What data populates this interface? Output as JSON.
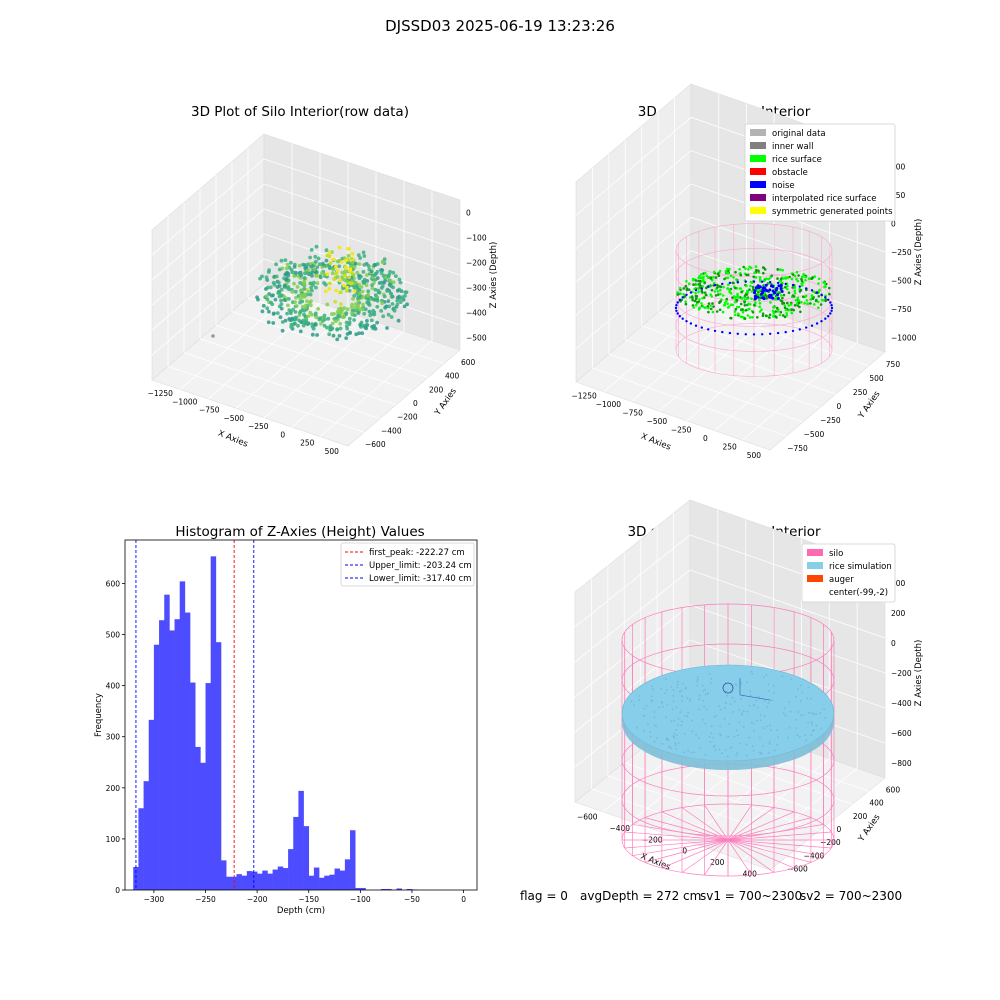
{
  "suptitle": "DJSSD03 2025-06-19 13:23:26",
  "status": {
    "flag": "flag = 0",
    "avg": "avgDepth = 272 cm",
    "sv1": "sv1 = 700~2300",
    "sv2": "sv2 = 700~2300"
  },
  "chart_data": [
    {
      "type": "scatter",
      "title": "3D Plot of Silo Interior(row data)",
      "xlabel": "X Axies",
      "ylabel": "Y Axies",
      "zlabel": "Z Axies (Depth)",
      "x_ticks": [
        "−1250",
        "−1000",
        "−750",
        "−500",
        "−250",
        "0",
        "250",
        "500"
      ],
      "y_ticks": [
        "−600",
        "−400",
        "−200",
        "0",
        "200",
        "400",
        "600"
      ],
      "z_ticks": [
        "−500",
        "−400",
        "−300",
        "−200",
        "−100",
        "0"
      ],
      "colormap": [
        "#2f9a8a",
        "#3bb07f",
        "#7fcf4d",
        "#c8e020",
        "#f4e61e"
      ]
    },
    {
      "type": "scatter",
      "title": "3D classify of Silo Interior",
      "xlabel": "X Axies",
      "ylabel": "Y Axies",
      "zlabel": "Z Axies (Depth)",
      "x_ticks": [
        "−1250",
        "−1000",
        "−750",
        "−500",
        "−250",
        "0",
        "250",
        "500"
      ],
      "y_ticks": [
        "−750",
        "−500",
        "−250",
        "0",
        "250",
        "500",
        "750"
      ],
      "z_ticks": [
        "−1000",
        "−750",
        "−500",
        "−250",
        "0",
        "250",
        "500"
      ],
      "legend": [
        {
          "label": "original data",
          "color": "#b3b3b3"
        },
        {
          "label": "inner wall",
          "color": "#808080"
        },
        {
          "label": "rice surface",
          "color": "#00ff00"
        },
        {
          "label": "obstacle",
          "color": "#ff0000"
        },
        {
          "label": "noise",
          "color": "#0000ff"
        },
        {
          "label": "interpolated rice surface",
          "color": "#800080"
        },
        {
          "label": "symmetric generated points",
          "color": "#ffff00"
        }
      ],
      "legend_placement": "top-right"
    },
    {
      "type": "bar",
      "title": "Histogram of Z-Axies (Height) Values",
      "xlabel": "Depth (cm)",
      "ylabel": "Frequency",
      "xlim": [
        -328,
        13
      ],
      "ylim": [
        0,
        685
      ],
      "bin_width": 5,
      "bin_start": -320,
      "values": [
        45,
        160,
        213,
        333,
        480,
        528,
        578,
        508,
        530,
        604,
        543,
        406,
        280,
        249,
        405,
        653,
        485,
        58,
        26,
        26,
        31,
        28,
        37,
        36,
        32,
        38,
        32,
        40,
        46,
        43,
        80,
        143,
        194,
        125,
        28,
        44,
        24,
        28,
        30,
        42,
        38,
        60,
        117,
        4,
        4,
        0,
        0,
        0,
        2,
        2,
        0,
        3,
        0,
        2,
        1
      ],
      "x_ticks": [
        -300,
        -250,
        -200,
        -150,
        -100,
        -50,
        0
      ],
      "x_tick_labels": [
        "−300",
        "−250",
        "−200",
        "−150",
        "−100",
        "−50",
        "0"
      ],
      "y_ticks": [
        0,
        100,
        200,
        300,
        400,
        500,
        600
      ],
      "bar_color": "#4d4dff",
      "vlines": [
        {
          "x": -222.27,
          "color": "#ff0000",
          "label": "first_peak: -222.27 cm"
        },
        {
          "x": -203.24,
          "color": "#0000ff",
          "label": "Upper_limit: -203.24 cm"
        },
        {
          "x": -317.4,
          "color": "#0000ff",
          "label": "Lower_limit: -317.40 cm"
        }
      ],
      "legend_placement": "top-right",
      "grid": false
    },
    {
      "type": "scatter",
      "title": "3D simulation of Silo Interior",
      "xlabel": "X Axies",
      "ylabel": "Y Axies",
      "zlabel": "Z Axies (Depth)",
      "x_ticks": [
        "−600",
        "−400",
        "−200",
        "0",
        "200",
        "400"
      ],
      "y_ticks": [
        "−600",
        "−400",
        "−200",
        "0",
        "200",
        "400",
        "600"
      ],
      "z_ticks": [
        "−800",
        "−600",
        "−400",
        "−200",
        "0",
        "200",
        "400"
      ],
      "legend": [
        {
          "label": "silo",
          "color": "#ff69b4"
        },
        {
          "label": "rice simulation",
          "color": "#87ceeb"
        },
        {
          "label": "auger",
          "color": "#ff4500"
        },
        {
          "label": "center(-99,-2)",
          "color": ""
        }
      ],
      "legend_placement": "top-right"
    }
  ]
}
